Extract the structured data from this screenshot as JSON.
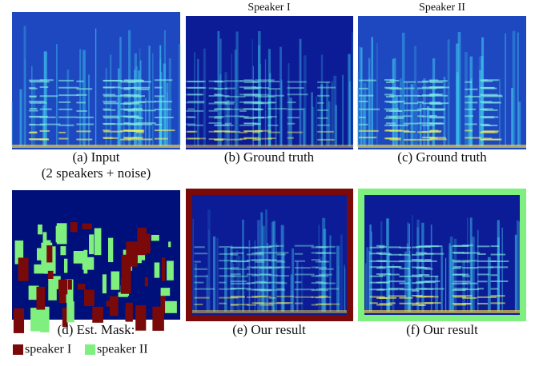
{
  "headers": [
    "Speaker I",
    "Speaker II"
  ],
  "panels": [
    {
      "caption": "(a) Input",
      "subcaption": "(2 speakers + noise)"
    },
    {
      "caption": "(b) Ground truth"
    },
    {
      "caption": "(c) Ground truth"
    },
    {
      "caption": "(d) Est. Mask:"
    },
    {
      "caption": "(e) Our result"
    },
    {
      "caption": "(f) Our result"
    }
  ],
  "legend": [
    {
      "label": "speaker I",
      "color": "#7a0a0a"
    },
    {
      "label": "speaker II",
      "color": "#7ff07f"
    }
  ]
}
